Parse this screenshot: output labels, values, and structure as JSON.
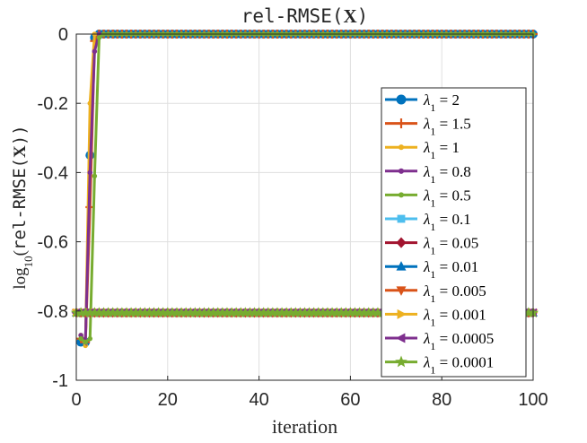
{
  "chart_data": {
    "type": "line",
    "title_mono": "rel-RMSE(",
    "title_bold": "X",
    "title_end": ")",
    "xlabel": "iteration",
    "ylabel_prefix": "log",
    "ylabel_sub": "10",
    "ylabel_mono": "rel-RMSE(",
    "ylabel_bold": "X",
    "ylabel_end": "))",
    "xlim": [
      0,
      100
    ],
    "ylim": [
      -1,
      0
    ],
    "xticks": [
      0,
      20,
      40,
      60,
      80,
      100
    ],
    "yticks": [
      0,
      -0.2,
      -0.4,
      -0.6,
      -0.8,
      -1
    ],
    "xtick_labels": [
      "0",
      "20",
      "40",
      "60",
      "80",
      "100"
    ],
    "ytick_labels": [
      "0",
      "-0.2",
      "-0.4",
      "-0.6",
      "-0.8",
      "-1"
    ],
    "grid": true,
    "legend_position": "right",
    "legend_symbol": "λ",
    "legend_sub": "1",
    "series": [
      {
        "name": "2",
        "color": "#0072BD",
        "marker": "circle",
        "points": [
          [
            1,
            -0.89
          ],
          [
            2,
            -0.89
          ],
          [
            3,
            -0.35
          ],
          [
            4,
            -0.01
          ],
          [
            5,
            0
          ],
          [
            100,
            0
          ]
        ]
      },
      {
        "name": "1.5",
        "color": "#D95319",
        "marker": "plus",
        "points": [
          [
            1,
            -0.88
          ],
          [
            2,
            -0.89
          ],
          [
            3,
            -0.5
          ],
          [
            4,
            -0.02
          ],
          [
            5,
            0
          ],
          [
            100,
            0
          ]
        ]
      },
      {
        "name": "1",
        "color": "#EDB120",
        "marker": "dot",
        "points": [
          [
            1,
            -0.87
          ],
          [
            2,
            -0.9
          ],
          [
            3,
            -0.2
          ],
          [
            4,
            0
          ],
          [
            5,
            0
          ],
          [
            100,
            0
          ]
        ]
      },
      {
        "name": "0.8",
        "color": "#7E2F8E",
        "marker": "dot",
        "points": [
          [
            1,
            -0.87
          ],
          [
            2,
            -0.89
          ],
          [
            3,
            -0.4
          ],
          [
            4,
            -0.05
          ],
          [
            5,
            0
          ],
          [
            100,
            0
          ]
        ]
      },
      {
        "name": "0.5",
        "color": "#77AC30",
        "marker": "dot",
        "points": [
          [
            1,
            -0.88
          ],
          [
            2,
            -0.89
          ],
          [
            3,
            -0.88
          ],
          [
            4,
            -0.41
          ],
          [
            5,
            -0.01
          ],
          [
            6,
            0
          ],
          [
            100,
            0
          ]
        ]
      },
      {
        "name": "0.1",
        "color": "#4DBEEE",
        "marker": "square",
        "points": [
          [
            0,
            -0.805
          ],
          [
            100,
            -0.805
          ]
        ]
      },
      {
        "name": "0.05",
        "color": "#A2142F",
        "marker": "diamond",
        "points": [
          [
            0,
            -0.805
          ],
          [
            100,
            -0.805
          ]
        ]
      },
      {
        "name": "0.01",
        "color": "#0072BD",
        "marker": "triangle-up",
        "points": [
          [
            0,
            -0.805
          ],
          [
            100,
            -0.805
          ]
        ]
      },
      {
        "name": "0.005",
        "color": "#D95319",
        "marker": "triangle-down",
        "points": [
          [
            0,
            -0.805
          ],
          [
            100,
            -0.805
          ]
        ]
      },
      {
        "name": "0.001",
        "color": "#EDB120",
        "marker": "triangle-right",
        "points": [
          [
            0,
            -0.805
          ],
          [
            100,
            -0.805
          ]
        ]
      },
      {
        "name": "0.0005",
        "color": "#7E2F8E",
        "marker": "triangle-left",
        "points": [
          [
            0,
            -0.805
          ],
          [
            100,
            -0.805
          ]
        ]
      },
      {
        "name": "0.0001",
        "color": "#77AC30",
        "marker": "star",
        "points": [
          [
            0,
            -0.805
          ],
          [
            100,
            -0.805
          ]
        ]
      }
    ]
  }
}
